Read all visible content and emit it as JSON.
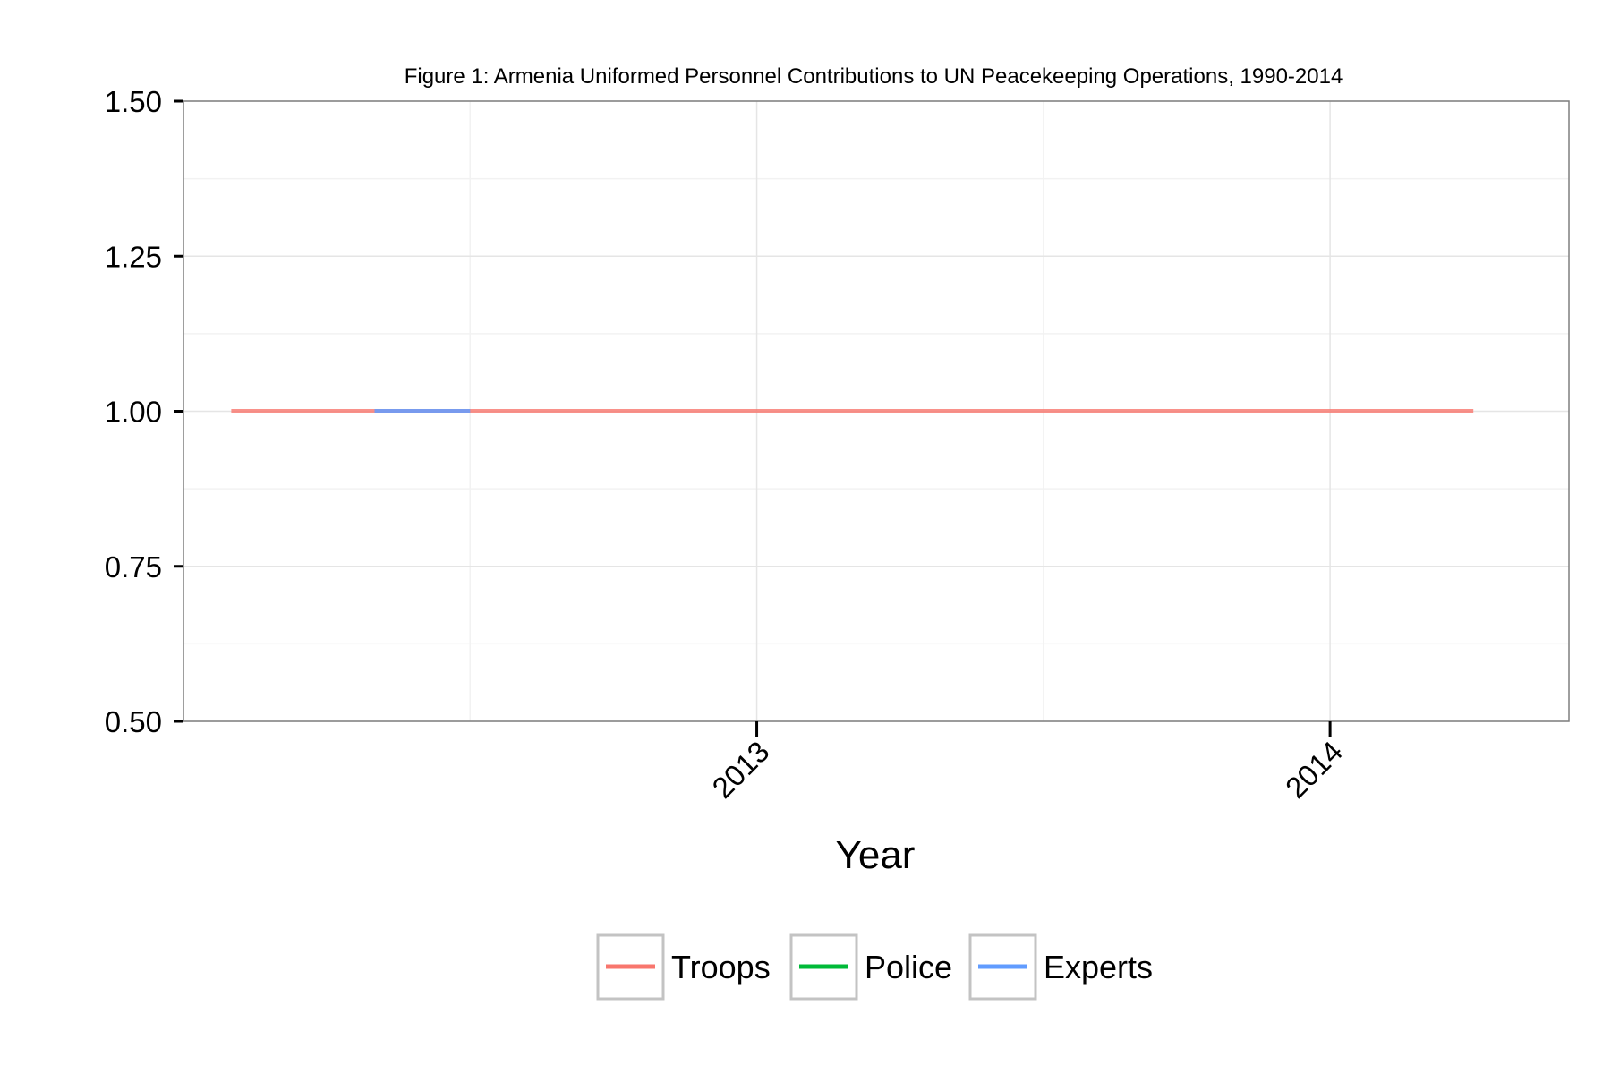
{
  "chart_data": {
    "type": "line",
    "title": "Figure 1: Armenia Uniformed Personnel Contributions to UN Peacekeeping Operations, 1990-2014",
    "xlabel": "Year",
    "ylabel": "",
    "x_ticks": [
      "2013",
      "2014"
    ],
    "y_ticks": [
      "0.50",
      "0.75",
      "1.00",
      "1.25",
      "1.50"
    ],
    "xlim": [
      "2012-01",
      "2014-06"
    ],
    "ylim": [
      0.5,
      1.5
    ],
    "grid": true,
    "legend_position": "bottom",
    "series": [
      {
        "name": "Troops",
        "color": "#F8766D",
        "x": [
          "2012-02",
          "2012-04",
          "2012-06",
          "2012-08",
          "2012-10",
          "2012-12",
          "2013-02",
          "2013-04",
          "2013-06",
          "2013-08",
          "2013-10",
          "2013-12",
          "2014-02",
          "2014-04"
        ],
        "values": [
          1,
          1,
          1,
          1,
          1,
          1,
          1,
          1,
          1,
          1,
          1,
          1,
          1,
          1
        ]
      },
      {
        "name": "Police",
        "color": "#00BA38",
        "x": [],
        "values": []
      },
      {
        "name": "Experts",
        "color": "#619CFF",
        "x": [
          "2012-05",
          "2012-07"
        ],
        "values": [
          1,
          1
        ]
      }
    ]
  }
}
